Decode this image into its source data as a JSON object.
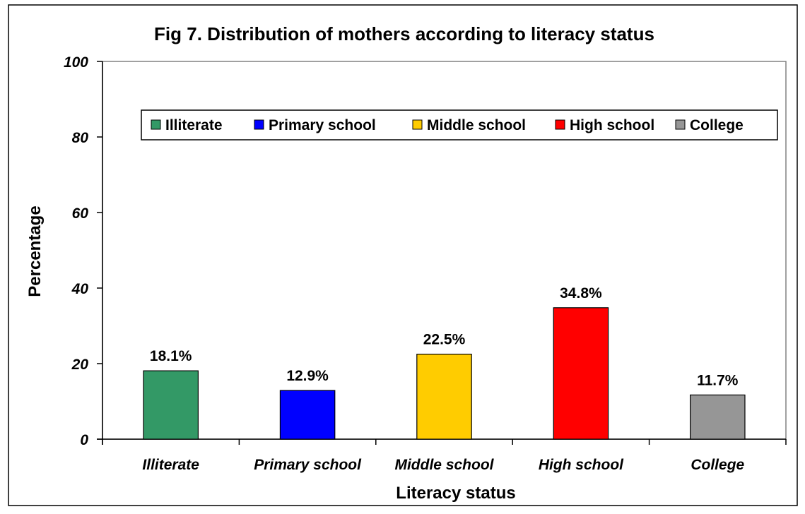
{
  "chart_data": {
    "type": "bar",
    "title": "Fig 7. Distribution of mothers according to literacy status",
    "xlabel": "Literacy status",
    "ylabel": "Percentage",
    "ylim": [
      0,
      100
    ],
    "yticks": [
      0,
      20,
      40,
      60,
      80,
      100
    ],
    "grid": false,
    "legend_position": "top",
    "categories": [
      "Illiterate",
      "Primary school",
      "Middle school",
      "High school",
      "College"
    ],
    "values": [
      18.1,
      12.9,
      22.5,
      34.8,
      11.7
    ],
    "data_labels": [
      "18.1%",
      "12.9%",
      "22.5%",
      "34.8%",
      "11.7%"
    ],
    "colors": [
      "#339966",
      "#0000ff",
      "#ffcc00",
      "#ff0000",
      "#969696"
    ],
    "legend": [
      "Illiterate",
      "Primary school",
      "Middle school",
      "High school",
      "College"
    ],
    "plot_background": "#ffffff"
  }
}
